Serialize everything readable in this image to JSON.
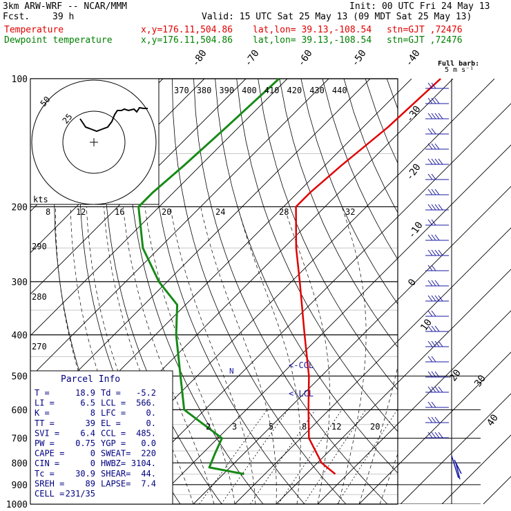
{
  "header": {
    "model": "3km ARW-WRF -- NCAR/MMM",
    "init": "Init: 00 UTC Fri 24 May 13",
    "fcst_label": "Fcst.",
    "fcst_value": "39 h",
    "valid": "Valid: 15 UTC Sat 25 May 13 (09 MDT Sat 25 May 13)",
    "lines": [
      {
        "name": "Temperature",
        "xy": "x,y=176.11,504.86",
        "latlon": "lat,lon= 39.13,-108.54",
        "stn": "stn=GJT ,72476",
        "color": "#e00000"
      },
      {
        "name": "Dewpoint temperature",
        "xy": "x,y=176.11,504.86",
        "latlon": "lat,lon= 39.13,-108.54",
        "stn": "stn=GJT ,72476",
        "color": "#008000"
      }
    ]
  },
  "colors": {
    "temperature": "#e00000",
    "dewpoint": "#168a16",
    "hodograph": "#000000",
    "wind": "#1a1aa0",
    "info": "#000080",
    "grid": "#000000"
  },
  "barb_legend": {
    "title": "Full barb:",
    "value": "5 m s⁻¹"
  },
  "parcel_info": {
    "title": "Parcel Info",
    "rows": [
      [
        "T  =",
        "18.9",
        "Td =",
        "-5.2"
      ],
      [
        "LI =",
        "6.5",
        "LCL =",
        "566."
      ],
      [
        "K  =",
        "8",
        "LFC =",
        "0."
      ],
      [
        "TT =",
        "39",
        "EL  =",
        "0."
      ],
      [
        "SVI =",
        "6.4",
        "CCL =",
        "485."
      ],
      [
        "PW =",
        "0.75",
        "YGP =",
        "0.0"
      ],
      [
        "CAPE =",
        "0",
        "SWEAT=",
        "220"
      ],
      [
        "CIN =",
        "0",
        "HWBZ=",
        "3104."
      ],
      [
        "Tc =",
        "30.9",
        "SHEAR=",
        "44."
      ],
      [
        "SREH =",
        "89",
        "LAPSE=",
        "7.4"
      ],
      [
        "CELL =",
        "231/35",
        "",
        ""
      ]
    ]
  },
  "chart_data": {
    "type": "line",
    "diagram": "skew-T log-p",
    "y_axis": {
      "pressure_levels": [
        100,
        200,
        300,
        400,
        500,
        600,
        700,
        800,
        900,
        1000
      ],
      "scale": "log"
    },
    "temperature_axis_labels": [
      "-80",
      "-70",
      "-60",
      "-50",
      "-40",
      "-30",
      "-20",
      "-10",
      "0",
      "10",
      "20",
      "30",
      "40"
    ],
    "theta_labels": [
      "370",
      "380",
      "390",
      "400",
      "410",
      "420",
      "430",
      "440"
    ],
    "theta_side_labels": [
      "290",
      "280",
      "270"
    ],
    "mixing_ratio_labels_top": [
      "8",
      "12",
      "16",
      "20",
      "24",
      "28",
      "32"
    ],
    "mixing_ratio_labels_bottom": [
      "2",
      "3",
      "5",
      "8",
      "12",
      "20"
    ],
    "hodograph": {
      "unit": "kts",
      "ring_labels": [
        "25",
        "50"
      ]
    },
    "markers": {
      "ccl": "<-CCL",
      "lcl": "<-LCL",
      "n": "N"
    },
    "series": [
      {
        "name": "Temperature",
        "points": [
          [
            100,
            -53
          ],
          [
            130,
            -54
          ],
          [
            160,
            -56
          ],
          [
            185,
            -57
          ],
          [
            200,
            -57
          ],
          [
            250,
            -47
          ],
          [
            300,
            -38
          ],
          [
            400,
            -24
          ],
          [
            500,
            -13
          ],
          [
            600,
            -5
          ],
          [
            700,
            2
          ],
          [
            800,
            11
          ],
          [
            850,
            17
          ]
        ]
      },
      {
        "name": "Dewpoint temperature",
        "points": [
          [
            100,
            -92
          ],
          [
            130,
            -93
          ],
          [
            160,
            -94
          ],
          [
            185,
            -95
          ],
          [
            200,
            -95
          ],
          [
            250,
            -84
          ],
          [
            300,
            -72
          ],
          [
            340,
            -62
          ],
          [
            400,
            -55
          ],
          [
            500,
            -44
          ],
          [
            600,
            -35
          ],
          [
            700,
            -19
          ],
          [
            760,
            -17
          ],
          [
            820,
            -15
          ],
          [
            850,
            -5
          ]
        ]
      }
    ],
    "wind_barbs": {
      "count": 24
    }
  }
}
